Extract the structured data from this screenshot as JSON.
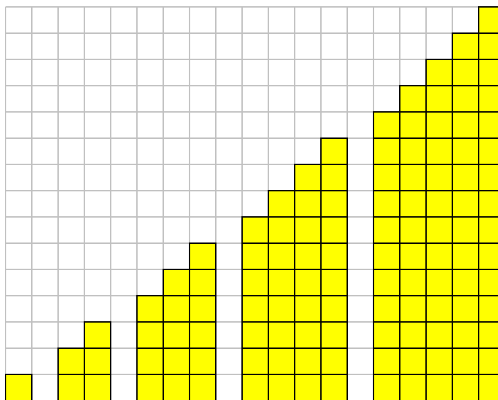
{
  "grid": {
    "columns": 19,
    "rows": 15,
    "background_color": "#ffffff",
    "grid_line_color": "#c0c0c0",
    "cell_fill_color": "#ffff00",
    "cell_border_color": "#000000"
  },
  "staircases": [
    {
      "start_column": 0,
      "column_heights": [
        1
      ]
    },
    {
      "start_column": 2,
      "column_heights": [
        2,
        3
      ]
    },
    {
      "start_column": 5,
      "column_heights": [
        4,
        5,
        6
      ]
    },
    {
      "start_column": 9,
      "column_heights": [
        7,
        8,
        9,
        10
      ]
    },
    {
      "start_column": 14,
      "column_heights": [
        11,
        12,
        13,
        14,
        15
      ]
    }
  ]
}
